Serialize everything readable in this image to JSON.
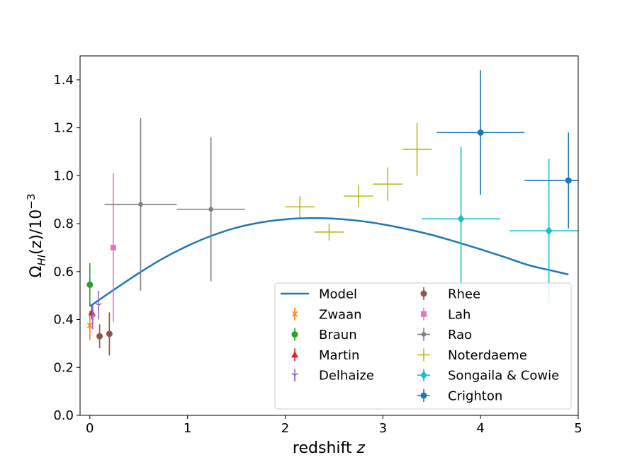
{
  "chart_data": {
    "type": "scatter",
    "title": "",
    "xlabel": "redshift",
    "xlabel_var": "z",
    "ylabel_prefix": "Ω",
    "ylabel_sub": "HI",
    "ylabel_mid": "(z)/10",
    "ylabel_sup": "−3",
    "xlim": [
      -0.1,
      5.0
    ],
    "ylim": [
      0.0,
      1.5
    ],
    "x_ticks": [
      0,
      1,
      2,
      3,
      4,
      5
    ],
    "x_tick_labels": [
      "0",
      "1",
      "2",
      "3",
      "4",
      "5"
    ],
    "y_ticks": [
      0.0,
      0.2,
      0.4,
      0.6,
      0.8,
      1.0,
      1.2,
      1.4
    ],
    "y_tick_labels": [
      "0.0",
      "0.2",
      "0.4",
      "0.6",
      "0.8",
      "1.0",
      "1.2",
      "1.4"
    ],
    "grid": false,
    "legend_position": "lower-right",
    "model": {
      "name": "Model",
      "color": "#1f77b4",
      "x": [
        0.0,
        0.25,
        0.5,
        0.75,
        1.0,
        1.25,
        1.5,
        1.75,
        2.0,
        2.25,
        2.5,
        2.75,
        3.0,
        3.25,
        3.5,
        3.75,
        4.0,
        4.25,
        4.5,
        4.75,
        4.9
      ],
      "y": [
        0.455,
        0.525,
        0.593,
        0.655,
        0.707,
        0.75,
        0.783,
        0.805,
        0.818,
        0.823,
        0.821,
        0.812,
        0.797,
        0.777,
        0.753,
        0.724,
        0.693,
        0.66,
        0.626,
        0.602,
        0.588
      ]
    },
    "series": [
      {
        "name": "Zwaan",
        "color": "#ff7f0e",
        "marker": "x",
        "points": [
          {
            "x": 0.0,
            "y": 0.375,
            "yerr": 0.06,
            "xerr": 0
          }
        ]
      },
      {
        "name": "Braun",
        "color": "#2ca02c",
        "marker": "circle",
        "points": [
          {
            "x": 0.0,
            "y": 0.545,
            "yerr": 0.09,
            "xerr": 0
          }
        ]
      },
      {
        "name": "Martin",
        "color": "#d62728",
        "marker": "triangle",
        "points": [
          {
            "x": 0.02,
            "y": 0.43,
            "yerr": 0.03,
            "xerr": 0
          }
        ]
      },
      {
        "name": "Delhaize",
        "color": "#9467bd",
        "marker": "tri",
        "points": [
          {
            "x": 0.03,
            "y": 0.41,
            "yerr": 0.05,
            "xerr": 0
          },
          {
            "x": 0.09,
            "y": 0.46,
            "yerr": 0.06,
            "xerr": 0
          }
        ]
      },
      {
        "name": "Rhee",
        "color": "#8c564b",
        "marker": "circle",
        "points": [
          {
            "x": 0.1,
            "y": 0.33,
            "yerr": 0.05,
            "xerr": 0
          },
          {
            "x": 0.2,
            "y": 0.34,
            "yerr": 0.09,
            "xerr": 0
          }
        ]
      },
      {
        "name": "Lah",
        "color": "#e377c2",
        "marker": "square",
        "points": [
          {
            "x": 0.24,
            "y": 0.7,
            "yerr": 0.31,
            "xerr": 0
          }
        ]
      },
      {
        "name": "Rao",
        "color": "#7f7f7f",
        "marker": "circle-small",
        "points": [
          {
            "x": 0.52,
            "y": 0.88,
            "yerr": 0.36,
            "xerr": 0.37
          },
          {
            "x": 1.24,
            "y": 0.86,
            "yerr": 0.3,
            "xerr": 0.35
          }
        ]
      },
      {
        "name": "Noterdaeme",
        "color": "#bcbd22",
        "marker": "plus",
        "points": [
          {
            "x": 2.15,
            "y": 0.87,
            "yerr": 0.045,
            "xerr": 0.15
          },
          {
            "x": 2.45,
            "y": 0.765,
            "yerr": 0.035,
            "xerr": 0.15
          },
          {
            "x": 2.75,
            "y": 0.915,
            "yerr": 0.045,
            "xerr": 0.15
          },
          {
            "x": 3.05,
            "y": 0.965,
            "yerr": 0.07,
            "xerr": 0.15
          },
          {
            "x": 3.35,
            "y": 1.11,
            "yerr": 0.11,
            "xerr": 0.15
          }
        ]
      },
      {
        "name": "Songaila & Cowie",
        "color": "#17becf",
        "marker": "diamond",
        "points": [
          {
            "x": 3.8,
            "y": 0.82,
            "yerr": 0.3,
            "xerr": 0.4
          },
          {
            "x": 4.7,
            "y": 0.77,
            "yerr": 0.3,
            "xerr": 0.4
          }
        ]
      },
      {
        "name": "Crighton",
        "color": "#1f77b4",
        "marker": "circle",
        "points": [
          {
            "x": 4.0,
            "y": 1.18,
            "yerr": 0.26,
            "xerr": 0.45
          },
          {
            "x": 4.9,
            "y": 0.98,
            "yerr": 0.2,
            "xerr": 0.45
          }
        ]
      }
    ]
  }
}
